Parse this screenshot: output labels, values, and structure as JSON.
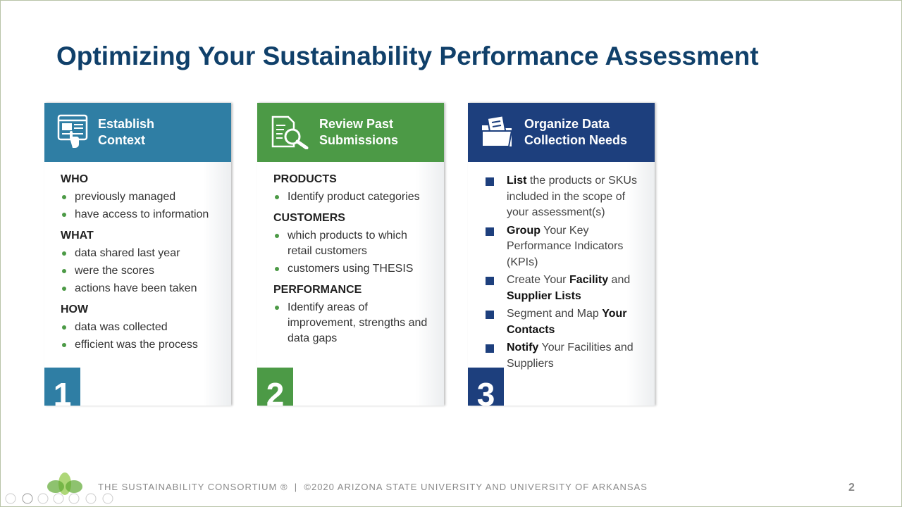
{
  "header": {
    "title": "Optimizing Your Sustainability Performance Assessment"
  },
  "cards": [
    {
      "title": "Establish Context",
      "color": "#2f7ea4",
      "bullet": "dot",
      "number": 1,
      "sections": [
        {
          "heading": "WHO",
          "items": [
            "previously managed",
            "have access to information"
          ]
        },
        {
          "heading": "WHAT",
          "items": [
            "data shared last year",
            "were the scores",
            "actions have been taken"
          ]
        },
        {
          "heading": "HOW",
          "items": [
            "data was collected",
            "efficient was the process"
          ]
        }
      ]
    },
    {
      "title": "Review Past Submissions",
      "color": "#4c9a46",
      "bullet": "dot",
      "number": 2,
      "sections": [
        {
          "heading": "PRODUCTS",
          "items": [
            "Identify product categories"
          ]
        },
        {
          "heading": "CUSTOMERS",
          "items": [
            "which products to which retail customers",
            "customers  using THESIS"
          ]
        },
        {
          "heading": "PERFORMANCE",
          "items": [
            "Identify areas of improvement, strengths and data gaps"
          ]
        }
      ]
    },
    {
      "title": "Organize Data Collection Needs",
      "color": "#1d3f7d",
      "bullet": "square",
      "number": 3,
      "sections": [
        {
          "items": [
            [
              {
                "text": "List",
                "bold": true
              },
              {
                "text": " the products or SKUs included in the scope of your assessment(s)",
                "bold": false
              }
            ],
            [
              {
                "text": "Group",
                "bold": true
              },
              {
                "text": " Your Key Performance Indicators (KPIs)",
                "bold": false
              }
            ],
            [
              {
                "text": "Create Your ",
                "bold": false
              },
              {
                "text": "Facility",
                "bold": true
              },
              {
                "text": " and ",
                "bold": false
              },
              {
                "text": "Supplier Lists",
                "bold": true
              }
            ],
            [
              {
                "text": "Segment and Map ",
                "bold": false
              },
              {
                "text": "Your Contacts",
                "bold": true
              }
            ],
            [
              {
                "text": "Notify",
                "bold": true
              },
              {
                "text": " Your Facilities and Suppliers",
                "bold": false
              }
            ]
          ]
        }
      ]
    }
  ],
  "footer": {
    "text": "THE SUSTAINABILITY CONSORTIUM ®  |  ©2020 ARIZONA STATE UNIVERSITY AND UNIVERSITY OF ARKANSAS",
    "page": "2"
  }
}
